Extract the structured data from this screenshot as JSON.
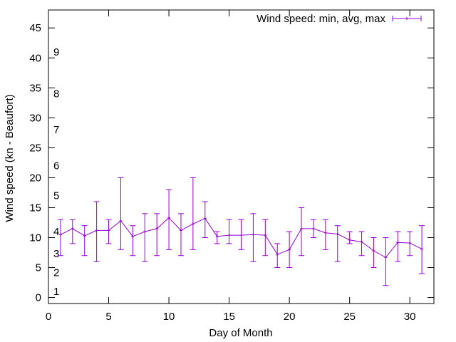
{
  "chart_data": {
    "type": "line",
    "xlabel": "Day of Month",
    "ylabel": "Wind speed (kn - Beaufort)",
    "xlim": [
      0,
      32
    ],
    "ylim": [
      -1,
      48
    ],
    "x_ticks": [
      0,
      5,
      10,
      15,
      20,
      25,
      30
    ],
    "y_ticks": [
      0,
      5,
      10,
      15,
      20,
      25,
      30,
      35,
      40,
      45
    ],
    "grid": false,
    "legend_position": "top-right",
    "beaufort_labels": [
      {
        "label": "1",
        "value": 1
      },
      {
        "label": "2",
        "value": 4.2
      },
      {
        "label": "3",
        "value": 7.3
      },
      {
        "label": "4",
        "value": 11
      },
      {
        "label": "5",
        "value": 17
      },
      {
        "label": "6",
        "value": 22
      },
      {
        "label": "7",
        "value": 28
      },
      {
        "label": "8",
        "value": 34
      },
      {
        "label": "9",
        "value": 41
      }
    ],
    "series": [
      {
        "name": "Wind speed: min, avg, max",
        "color": "#9400d3",
        "x": [
          1,
          2,
          3,
          4,
          5,
          6,
          7,
          8,
          9,
          10,
          11,
          12,
          13,
          14,
          15,
          16,
          17,
          18,
          19,
          20,
          21,
          22,
          23,
          24,
          25,
          26,
          27,
          28,
          29,
          30,
          31
        ],
        "avg": [
          10.5,
          11.5,
          10.3,
          11.2,
          11.2,
          12.8,
          10.2,
          11,
          11.5,
          13.3,
          11.2,
          12.3,
          13.2,
          10.2,
          10.4,
          10.4,
          10.5,
          10.4,
          7.2,
          8,
          11.5,
          11.5,
          10.8,
          10.6,
          9.6,
          9.3,
          7.8,
          6.7,
          9.2,
          9.1,
          8.1
        ],
        "min": [
          7,
          9,
          7,
          6,
          9,
          8,
          7,
          6,
          7,
          8,
          7,
          8,
          10,
          9,
          9,
          8,
          6,
          7,
          5,
          5,
          7,
          10,
          8,
          6,
          9,
          7,
          5,
          2,
          6,
          7,
          4
        ],
        "max": [
          13,
          13,
          12,
          16,
          13,
          20,
          12,
          14,
          14,
          18,
          14,
          20,
          16,
          11,
          13,
          13,
          14,
          13,
          9,
          11,
          15,
          13,
          13,
          12,
          11,
          11,
          10,
          10,
          11,
          11,
          12
        ]
      }
    ]
  }
}
